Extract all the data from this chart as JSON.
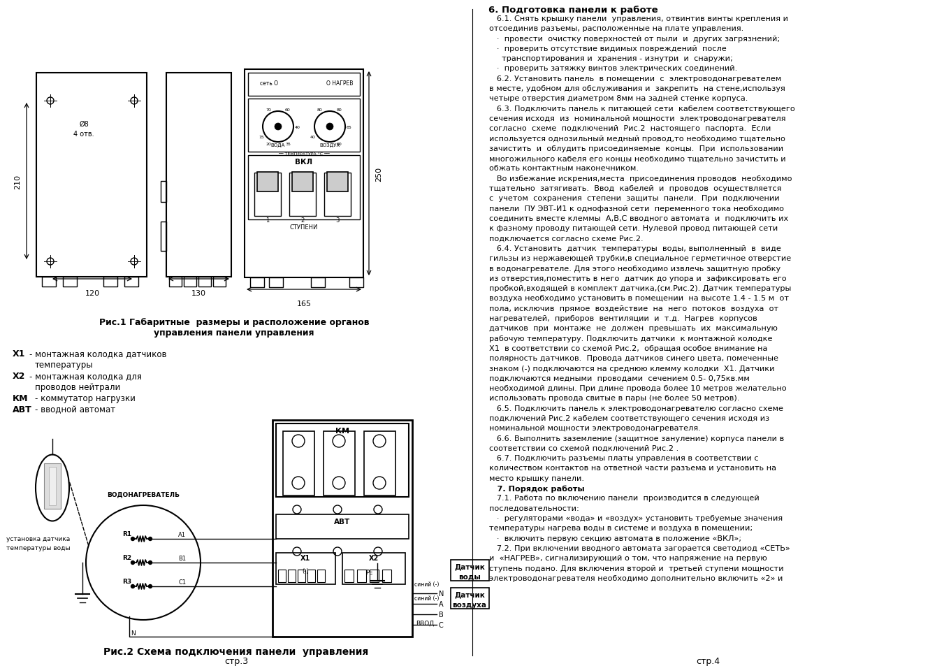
{
  "bg_color": "#ffffff",
  "left_col_caption1": "Рис.1 Габаритные  размеры и расположение органов",
  "left_col_caption2": "управления панели управления",
  "left_col_caption3": "Рис.2 Схема подключения панели  управления",
  "page_num_left": "стр.3",
  "page_num_right": "стр.4",
  "section6_title": "6. Подготовка панели к работе",
  "section6_lines": [
    "   6.1. Снять крышку панели  управления, отвинтив винты крепления и",
    "отсоединив разъемы, расположенные на плате управления.",
    "   ·  провести  очистку поверхностей от пыли  и  других загрязнений;",
    "   ·  проверить отсутствие видимых повреждений  после",
    "     транспортирования и  хранения - изнутри  и  снаружи;",
    "   ·  проверить затяжку винтов электрических соединений.",
    "   6.2. Установить панель  в помещении  с  электроводонагревателем",
    "в месте, удобном для обслуживания и  закрепить  на стене,используя",
    "четыре отверстия диаметром 8мм на задней стенке корпуса.",
    "   6.3. Подключить панель к питающей сети  кабелем соответствующего",
    "сечения исходя  из  номинальной мощности  электроводонагревателя",
    "согласно  схеме  подключений  Рис.2  настоящего  паспорта.  Если",
    "используется однозильный медный провод,то необходимо тщательно",
    "зачистить  и  облудить присоединяемые  концы.  При  использовании",
    "многожильного кабеля его концы необходимо тщательно зачистить и",
    "обжать контактным наконечником.",
    "   Во избежание искрения,места  присоединения проводов  необходимо",
    "тщательно  затягивать.  Ввод  кабелей  и  проводов  осуществляется",
    "с  учетом  сохранения  степени  защиты  панели.  При  подключении",
    "панели  ПУ ЭВТ-И1 к однофазной сети  переменного тока необходимо",
    "соединить вместе клеммы  А,В,С вводного автомата  и  подключить их",
    "к фазному проводу питающей сети. Нулевой провод питающей сети",
    "подключается согласно схеме Рис.2.",
    "   6.4. Установить  датчик  температуры  воды, выполненный  в  виде",
    "гильзы из нержавеющей трубки,в специальное герметичное отверстие",
    "в водонагревателе. Для этого необходимо извлечь защитную пробку",
    "из отверстия,поместить в него  датчик до упора и  зафиксировать его",
    "пробкой,входящей в комплект датчика,(см.Рис.2). Датчик температуры",
    "воздуха необходимо установить в помещении  на высоте 1.4 - 1.5 м  от",
    "пола, исключив  прямое  воздействие  на  него  потоков  воздуха  от",
    "нагревателей,  приборов  вентиляции  и  т.д.  Нагрев  корпусов",
    "датчиков  при  монтаже  не  должен  превышать  их  максимальную",
    "рабочую температуру. Подключить датчики  к монтажной колодке",
    "Х1  в соответствии со схемой Рис.2,  обращая особое внимание на",
    "полярность датчиков.  Провода датчиков синего цвета, помеченные",
    "знаком (-) подключаются на среднюю клемму колодки  Х1. Датчики",
    "подключаются медными  проводами  сечением 0.5- 0,75кв.мм",
    "необходимой длины. При длине провода более 10 метров желательно",
    "использовать провода свитые в пары (не более 50 метров).",
    "   6.5. Подключить панель к электроводонагревателю согласно схеме",
    "подключений Рис.2 кабелем соответствующего сечения исходя из",
    "номинальной мощности электроводонагревателя.",
    "   6.6. Выполнить заземление (защитное зануление) корпуса панели в",
    "соответствии со схемой подключений Рис.2 .",
    "   6.7. Подключить разъемы платы управления в соответствии с",
    "количеством контактов на ответной части разъема и установить на",
    "место крышку панели.",
    "   7. Порядок работы",
    "   7.1. Работа по включению панели  производится в следующей",
    "последовательности:",
    "   ·  регуляторами «вода» и «воздух» установить требуемые значения",
    "температуры нагрева воды в системе и воздуха в помещении;",
    "   ·  включить первую секцию автомата в положение «ВКЛ»;",
    "   7.2. При включении вводного автомата загорается светодиод «СЕТЬ»",
    "и  «НАГРЕВ», сигнализирующий о том, что напряжение на первую",
    "ступень подано. Для включения второй и  третьей ступени мощности",
    "электроводонагревателя необходимо дополнительно включить «2» и"
  ],
  "bold_lines": [
    "   7. Порядок работы"
  ]
}
